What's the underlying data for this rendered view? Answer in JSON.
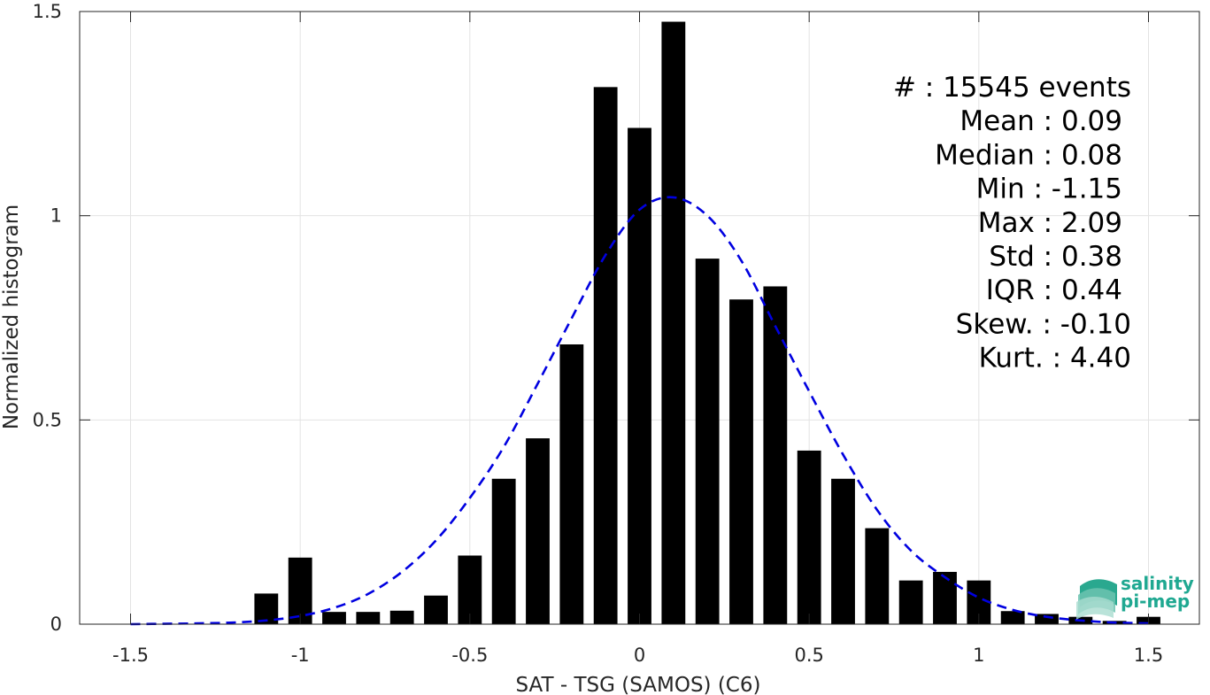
{
  "chart_data": {
    "type": "bar",
    "title": "",
    "xlabel": "SAT - TSG (SAMOS) (C6)",
    "ylabel": "Normalized histogram",
    "xlim": [
      -1.65,
      1.65
    ],
    "ylim": [
      0,
      1.5
    ],
    "xticks": [
      -1.5,
      -1,
      -0.5,
      0,
      0.5,
      1,
      1.5
    ],
    "xtick_labels": [
      "-1.5",
      "-1",
      "-0.5",
      "0",
      "0.5",
      "1",
      "1.5"
    ],
    "yticks": [
      0,
      0.5,
      1,
      1.5
    ],
    "ytick_labels": [
      "0",
      "0.5",
      "1",
      "1.5"
    ],
    "grid": true,
    "bar_width": 0.07,
    "bars": {
      "x": [
        -1.1,
        -1.0,
        -0.9,
        -0.8,
        -0.7,
        -0.6,
        -0.5,
        -0.4,
        -0.3,
        -0.2,
        -0.1,
        0.0,
        0.1,
        0.2,
        0.3,
        0.4,
        0.5,
        0.6,
        0.7,
        0.8,
        0.9,
        1.0,
        1.1,
        1.2,
        1.3,
        1.4,
        1.5
      ],
      "values": [
        0.075,
        0.163,
        0.03,
        0.03,
        0.033,
        0.07,
        0.168,
        0.356,
        0.455,
        0.685,
        1.315,
        1.215,
        1.475,
        0.895,
        0.795,
        0.827,
        0.425,
        0.356,
        0.235,
        0.107,
        0.128,
        0.107,
        0.032,
        0.025,
        0.018,
        0.008,
        0.018
      ],
      "color": "#000000"
    },
    "fit_curve": {
      "style": "dashed",
      "color": "#0000e0",
      "x": [
        -1.5,
        -1.4,
        -1.3,
        -1.2,
        -1.1,
        -1.0,
        -0.9,
        -0.8,
        -0.7,
        -0.6,
        -0.5,
        -0.4,
        -0.3,
        -0.2,
        -0.1,
        0.0,
        0.1,
        0.2,
        0.3,
        0.4,
        0.5,
        0.6,
        0.7,
        0.8,
        0.9,
        1.0,
        1.1,
        1.2,
        1.3,
        1.4,
        1.5
      ],
      "values": [
        0.0,
        0.001,
        0.002,
        0.004,
        0.009,
        0.02,
        0.04,
        0.074,
        0.128,
        0.205,
        0.309,
        0.434,
        0.589,
        0.749,
        0.904,
        1.015,
        1.045,
        1.0,
        0.89,
        0.73,
        0.57,
        0.415,
        0.28,
        0.18,
        0.115,
        0.065,
        0.035,
        0.018,
        0.009,
        0.004,
        0.002
      ]
    },
    "annotations": [
      {
        "label": "#  ",
        "value": ": 15545 events"
      },
      {
        "label": "Mean ",
        "value": ": 0.09"
      },
      {
        "label": "Median ",
        "value": ": 0.08"
      },
      {
        "label": "Min ",
        "value": ": -1.15"
      },
      {
        "label": "Max ",
        "value": ": 2.09"
      },
      {
        "label": "Std ",
        "value": ": 0.38"
      },
      {
        "label": "IQR ",
        "value": ": 0.44"
      },
      {
        "label": "Skew. ",
        "value": ": -0.10"
      },
      {
        "label": "Kurt. ",
        "value": ": 4.40"
      }
    ]
  },
  "logo": {
    "line1": "salinity",
    "line2": "pi-mep",
    "color": "#1fa891"
  }
}
